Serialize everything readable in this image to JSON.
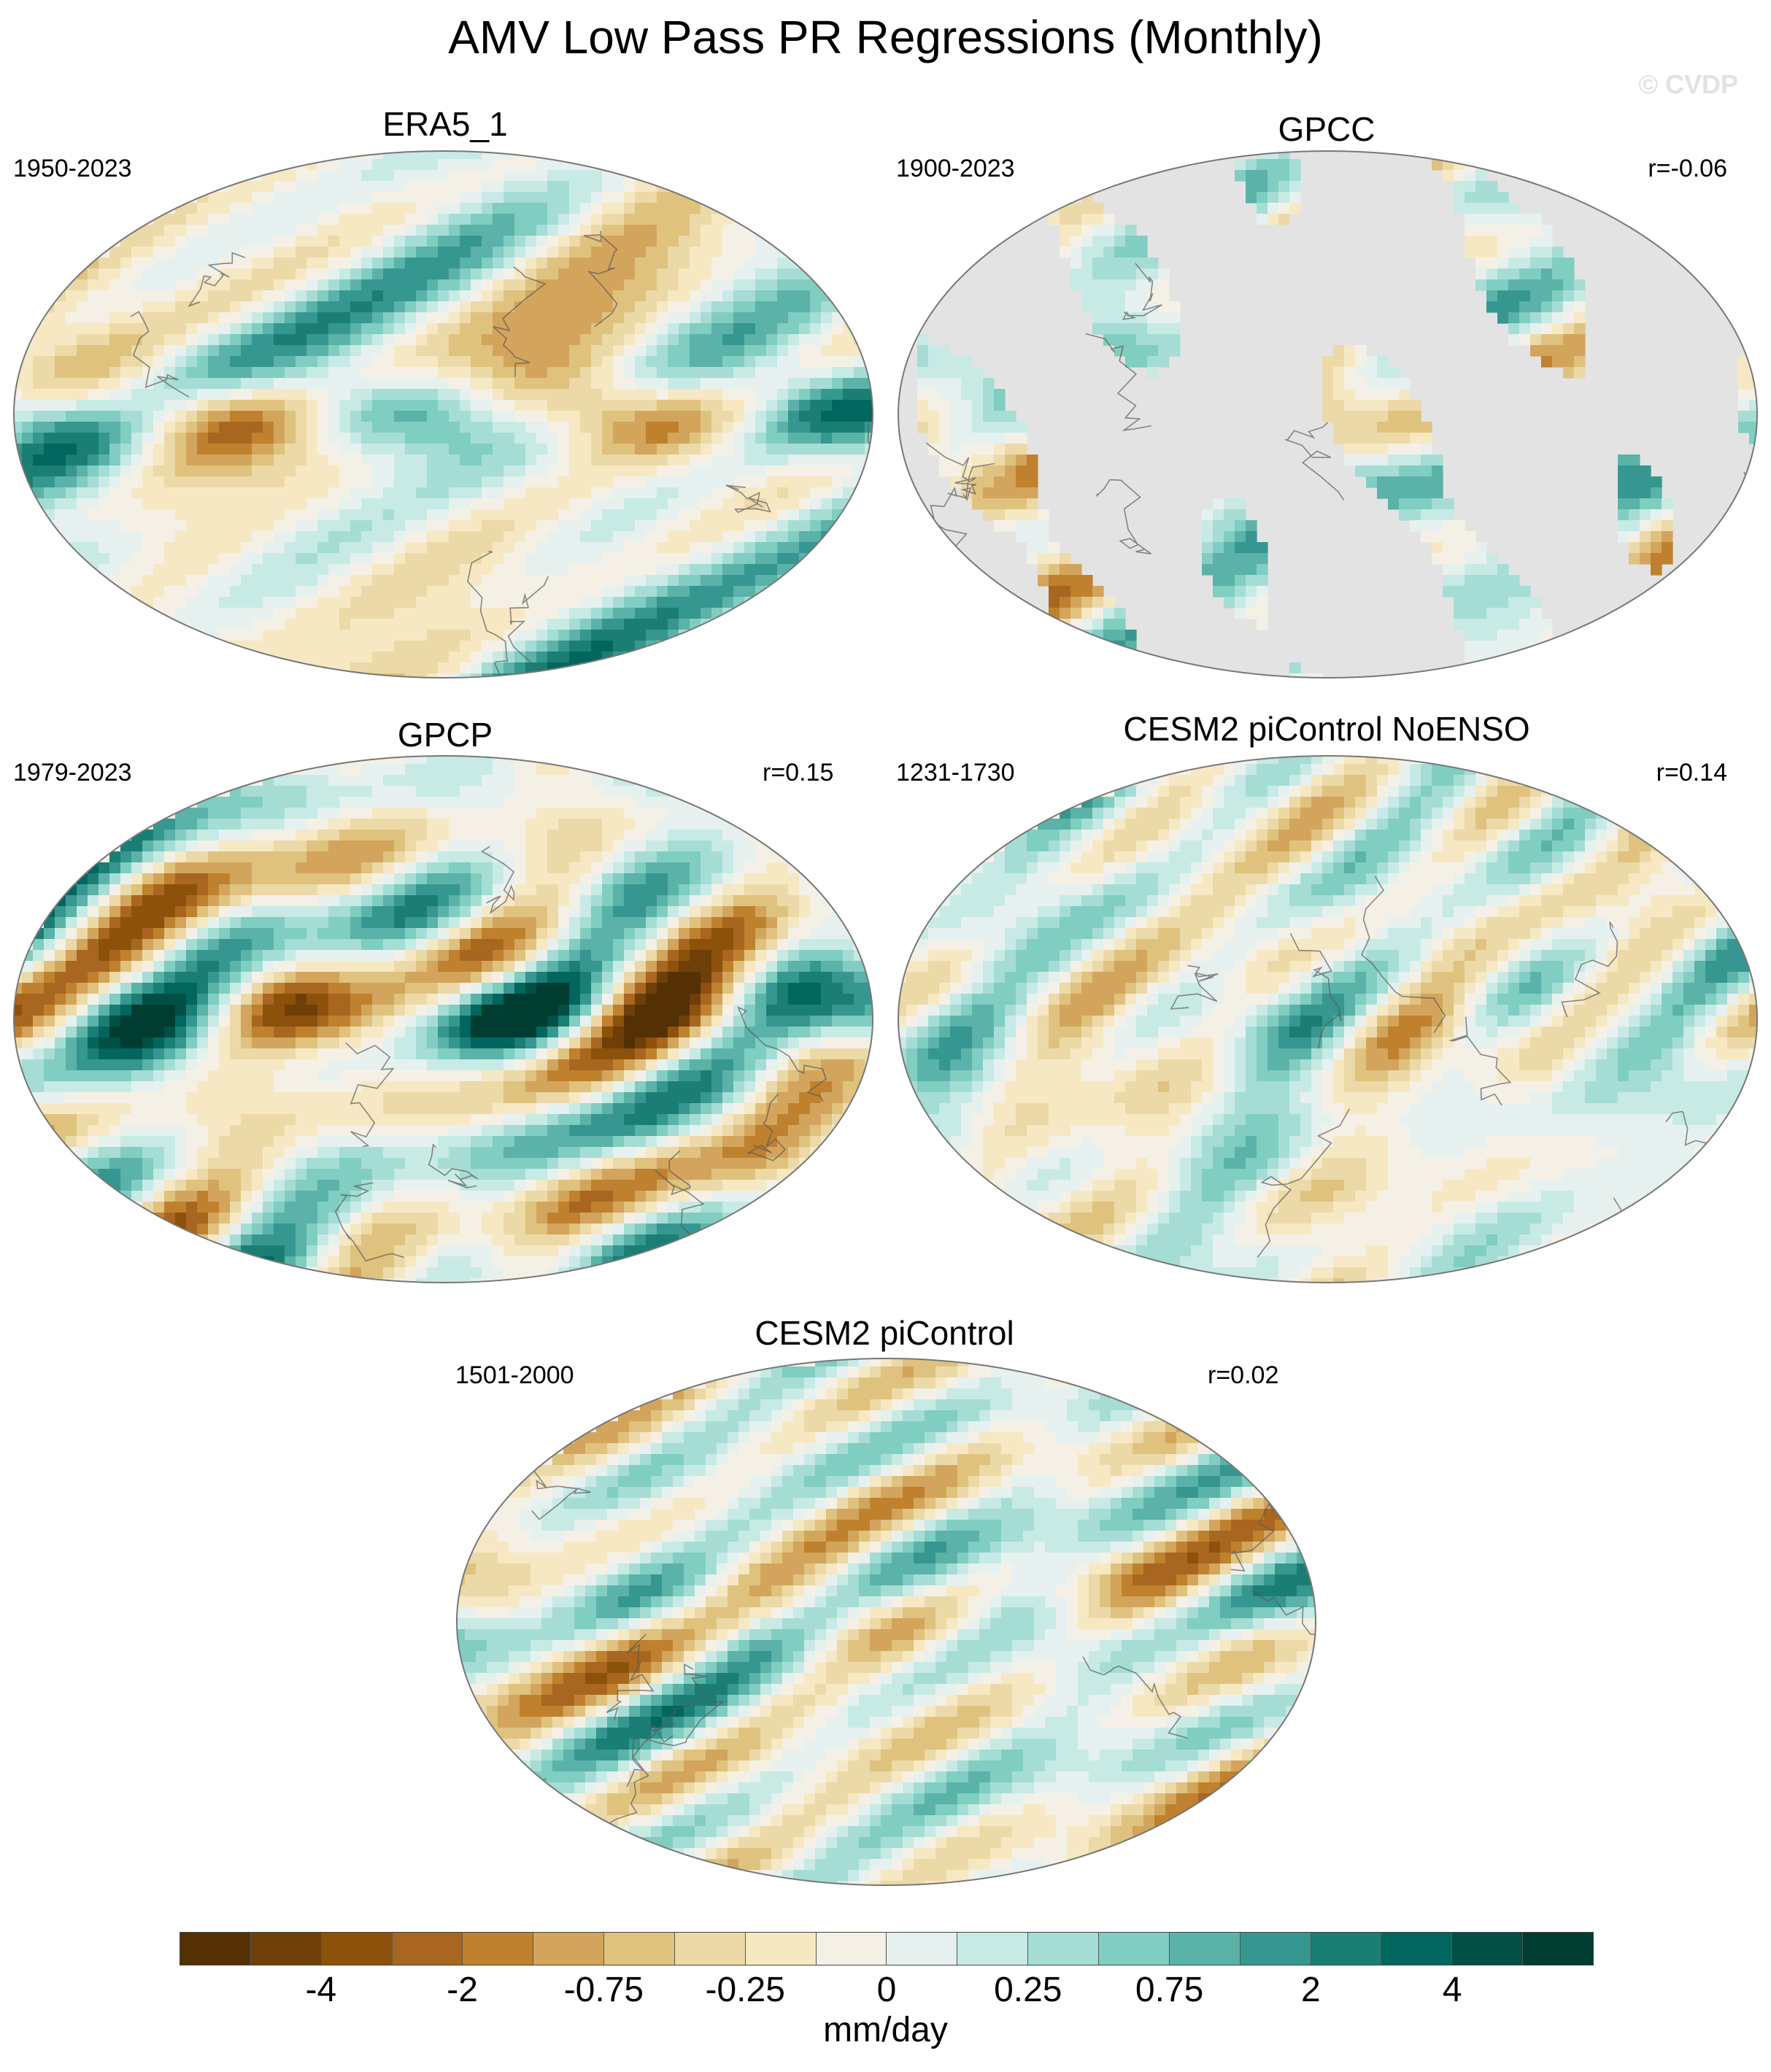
{
  "figure": {
    "title": "AMV Low Pass PR Regressions (Monthly)",
    "watermark": "© CVDP"
  },
  "panels": [
    {
      "title": "ERA5_1",
      "period": "1950-2023",
      "r": ""
    },
    {
      "title": "GPCC",
      "period": "1900-2023",
      "r": "r=-0.06"
    },
    {
      "title": "GPCP",
      "period": "1979-2023",
      "r": "r=0.15"
    },
    {
      "title": "CESM2 piControl NoENSO",
      "period": "1231-1730",
      "r": "r=0.14"
    },
    {
      "title": "CESM2 piControl",
      "period": "1501-2000",
      "r": "r=0.02"
    }
  ],
  "colorbar": {
    "units": "mm/day",
    "tick_labels": [
      "-4",
      "-2",
      "-0.75",
      "-0.25",
      "0",
      "0.25",
      "0.75",
      "2",
      "4"
    ],
    "colors": [
      "#543005",
      "#6f3f0a",
      "#8c510a",
      "#a86620",
      "#bf812d",
      "#d3a45c",
      "#dfc27d",
      "#ecd9a8",
      "#f6e8c3",
      "#f5f0e6",
      "#e6f1ef",
      "#c7eae5",
      "#a5ddd5",
      "#80cdc1",
      "#5ab2a8",
      "#35978f",
      "#1a7e75",
      "#01665e",
      "#014f45",
      "#003c30"
    ],
    "missing_color": "#e3e3e3"
  }
}
